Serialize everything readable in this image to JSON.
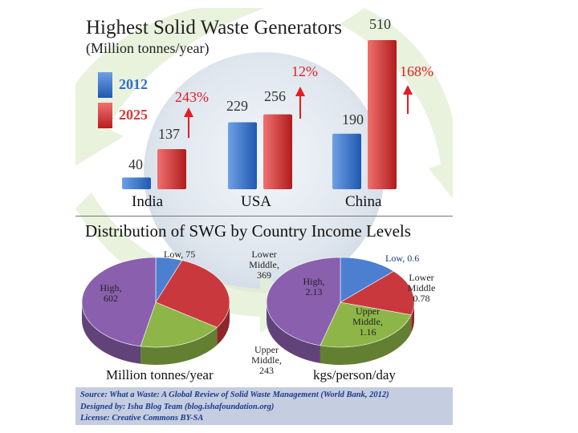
{
  "chart_data": [
    {
      "type": "bar",
      "title": "Highest Solid Waste Generators",
      "subtitle": "(Million tonnes/year)",
      "categories": [
        "India",
        "USA",
        "China"
      ],
      "series": [
        {
          "name": "2012",
          "values": [
            40,
            229,
            190
          ],
          "color": "#2f6fc6"
        },
        {
          "name": "2025",
          "values": [
            137,
            256,
            510
          ],
          "color": "#d83a3a"
        }
      ],
      "growth_labels": [
        "243%",
        "12%",
        "168%"
      ],
      "ylim": [
        0,
        510
      ]
    },
    {
      "type": "pie",
      "title": "Distribution of SWG by Country Income Levels",
      "unit_label": "Million tonnes/year",
      "slices": [
        {
          "label": "Low, 75",
          "value": 75,
          "color": "#4d7fd0"
        },
        {
          "label": "Lower Middle, 369",
          "value": 369,
          "color": "#c9383c"
        },
        {
          "label": "Upper Middle, 243",
          "value": 243,
          "color": "#8db548"
        },
        {
          "label": "High, 602",
          "value": 602,
          "color": "#8a5fae"
        }
      ]
    },
    {
      "type": "pie",
      "unit_label": "kgs/person/day",
      "slices": [
        {
          "label": "Low, 0.6",
          "value": 0.6,
          "color": "#4d7fd0"
        },
        {
          "label": "Lower Middle 0.78",
          "value": 0.78,
          "color": "#c9383c"
        },
        {
          "label": "Upper Middle, 1.16",
          "value": 1.16,
          "color": "#8db548"
        },
        {
          "label": "High, 2.13",
          "value": 2.13,
          "color": "#8a5fae"
        }
      ]
    }
  ],
  "source": {
    "line1": "Source: What a Waste: A Global Review of Solid Waste Management (World Bank, 2012)",
    "line2": "Designed by: Isha Blog Team (blog.ishafoundation.org)",
    "line3": "License: Creative Commons BY-SA"
  }
}
